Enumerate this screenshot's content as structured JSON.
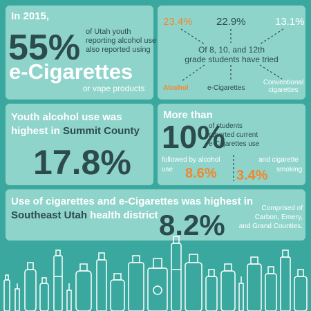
{
  "panels": [
    {
      "intro": "In 2015,",
      "percent": "55%",
      "detail_lines": [
        "of Utah youth",
        "reporting alcohol use",
        "also reported using"
      ],
      "highlight": "e-Cigarettes",
      "tail": "or vape products"
    },
    {
      "percents": [
        "23.4%",
        "22.9%",
        "13.1%"
      ],
      "center_lines": [
        "Of 8, 10, and 12th",
        "grade students have tried"
      ],
      "labels": [
        "Alcohol",
        "e-Cigarettes"
      ],
      "label_3_lines": [
        "Conventional",
        "cigarettes"
      ]
    },
    {
      "line_1": "Youth alcohol use was",
      "line_2": "highest in ",
      "place": "Summit County",
      "percent": "17.8%"
    },
    {
      "intro": "More than",
      "percent": "10%",
      "detail_lines": [
        "of students",
        "reported current",
        "e-Cigarettes use"
      ],
      "alcohol_lines": [
        "followed by alcohol",
        "use"
      ],
      "alcohol_percent": "8.6%",
      "cigarette_lines": [
        "and cigarette",
        "smoking"
      ],
      "cigarette_percent": "3.4%"
    },
    {
      "line_1": "Use of cigarettes and e-Cigarettes was highest in",
      "place": "Southeast Utah",
      "line_2": " health district",
      "percent": "8.2%",
      "note_lines": [
        "Comprised of",
        "Carbon, Emery,",
        "and Grand Counties."
      ]
    }
  ]
}
